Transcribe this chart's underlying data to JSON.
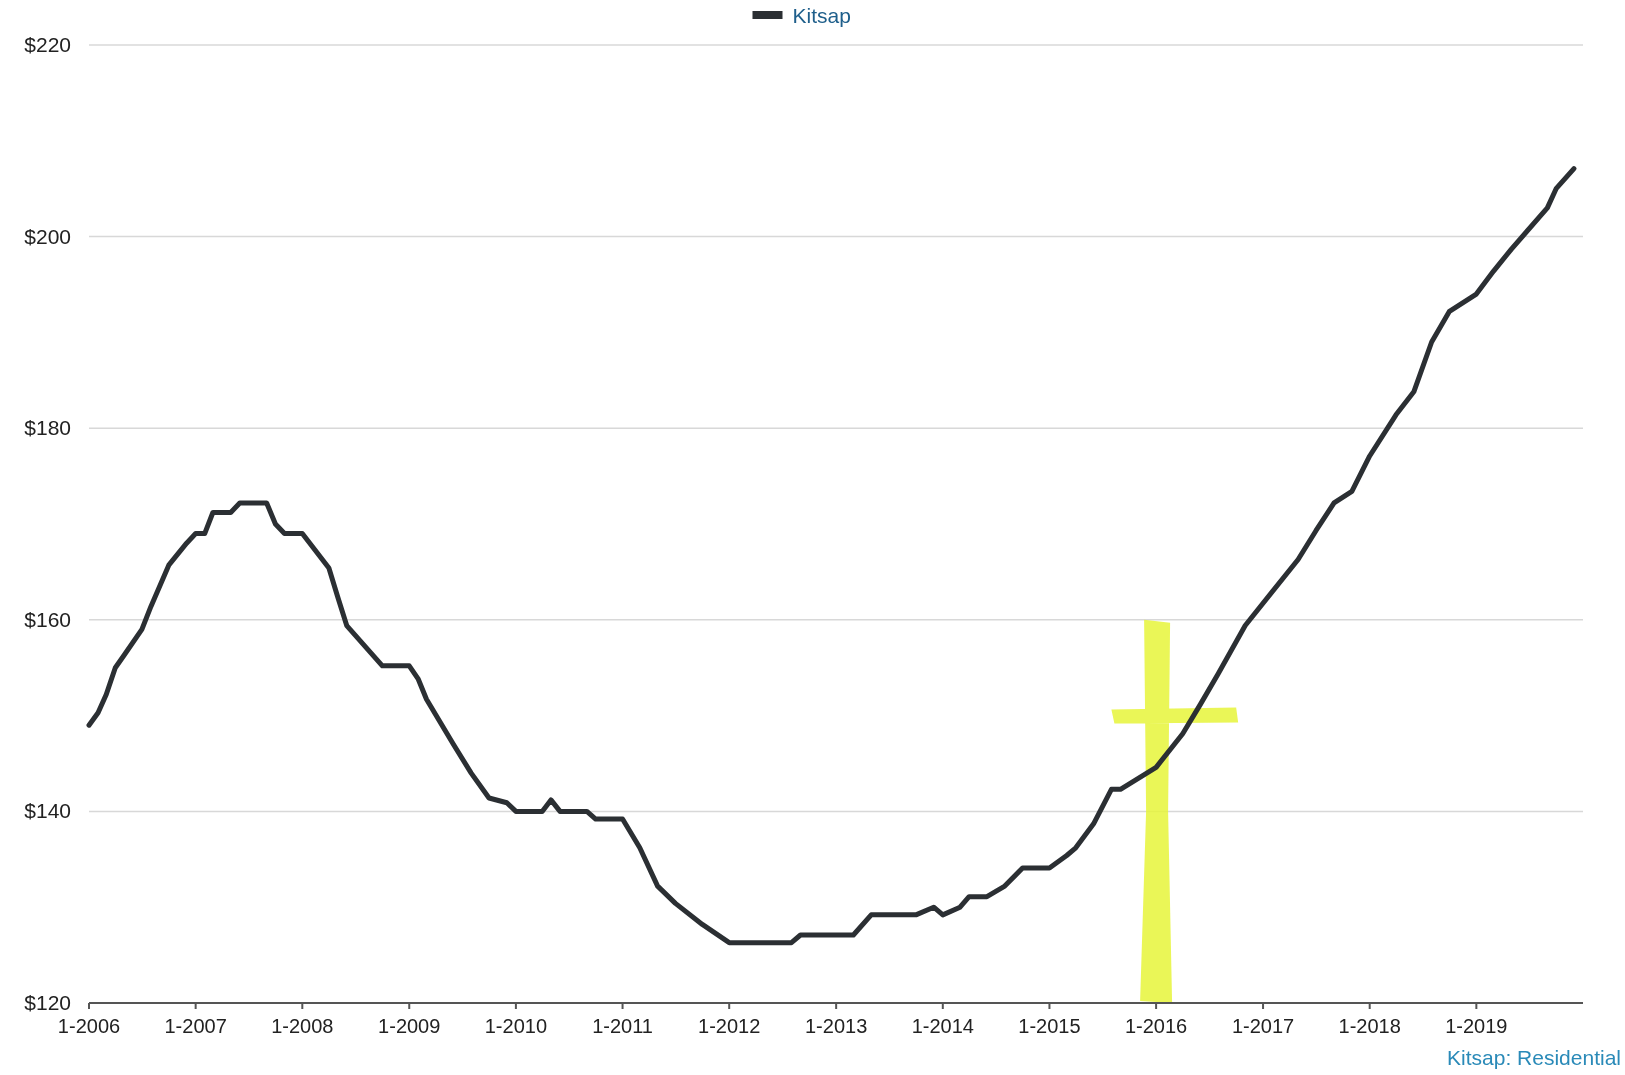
{
  "chart_data": {
    "type": "line",
    "x": [
      "2006-01",
      "2006-02",
      "2006-03",
      "2006-04",
      "2006-05",
      "2006-07",
      "2006-08",
      "2006-10",
      "2006-12",
      "2007-01",
      "2007-02",
      "2007-03",
      "2007-05",
      "2007-06",
      "2007-09",
      "2007-10",
      "2007-11",
      "2008-01",
      "2008-04",
      "2008-05",
      "2008-06",
      "2008-10",
      "2009-01",
      "2009-02",
      "2009-03",
      "2009-06",
      "2009-08",
      "2009-10",
      "2009-12",
      "2010-01",
      "2010-04",
      "2010-05",
      "2010-06",
      "2010-09",
      "2010-10",
      "2011-01",
      "2011-03",
      "2011-05",
      "2011-07",
      "2011-10",
      "2012-01",
      "2012-08",
      "2012-09",
      "2013-03",
      "2013-05",
      "2013-10",
      "2013-12",
      "2014-01",
      "2014-03",
      "2014-04",
      "2014-06",
      "2014-08",
      "2014-10",
      "2015-01",
      "2015-03",
      "2015-04",
      "2015-06",
      "2015-08",
      "2015-09",
      "2016-01",
      "2016-04",
      "2016-06",
      "2016-08",
      "2016-11",
      "2017-05",
      "2017-07",
      "2017-09",
      "2017-11",
      "2018-01",
      "2018-04",
      "2018-06",
      "2018-08",
      "2018-10",
      "2019-01",
      "2019-03",
      "2019-05",
      "2019-09",
      "2019-10",
      "2019-12"
    ],
    "series": [
      {
        "name": "Kitsap",
        "color": "#2b2f33",
        "values": [
          149,
          150.3,
          152.2,
          155,
          156.3,
          159,
          161.4,
          165.7,
          168,
          169,
          169,
          171.2,
          171.2,
          172.2,
          172.2,
          170,
          169,
          169,
          165.4,
          162.4,
          159.4,
          155.2,
          155.2,
          153.8,
          151.7,
          147,
          144,
          141.4,
          140.9,
          140,
          140,
          141.2,
          140,
          140,
          139.2,
          139.2,
          136.2,
          132.2,
          130.4,
          128.2,
          126.3,
          126.3,
          127.1,
          127.1,
          129.2,
          129.2,
          130,
          129.2,
          130,
          131.1,
          131.1,
          132.2,
          134.1,
          134.1,
          135.4,
          136.2,
          138.7,
          142.3,
          142.3,
          144.6,
          148.1,
          151.2,
          154.4,
          159.4,
          166.3,
          169.3,
          172.2,
          173.4,
          177.1,
          181.4,
          183.8,
          189,
          192.2,
          194,
          196.4,
          198.7,
          203,
          205,
          207.1
        ]
      }
    ],
    "xlim": [
      "2006-01",
      "2020-01"
    ],
    "xticks": [
      {
        "value": "2006-01",
        "label": "1-2006"
      },
      {
        "value": "2007-01",
        "label": "1-2007"
      },
      {
        "value": "2008-01",
        "label": "1-2008"
      },
      {
        "value": "2009-01",
        "label": "1-2009"
      },
      {
        "value": "2010-01",
        "label": "1-2010"
      },
      {
        "value": "2011-01",
        "label": "1-2011"
      },
      {
        "value": "2012-01",
        "label": "1-2012"
      },
      {
        "value": "2013-01",
        "label": "1-2013"
      },
      {
        "value": "2014-01",
        "label": "1-2014"
      },
      {
        "value": "2015-01",
        "label": "1-2015"
      },
      {
        "value": "2016-01",
        "label": "1-2016"
      },
      {
        "value": "2017-01",
        "label": "1-2017"
      },
      {
        "value": "2018-01",
        "label": "1-2018"
      },
      {
        "value": "2019-01",
        "label": "1-2019"
      }
    ],
    "ylim": [
      120,
      220
    ],
    "yticks": [
      {
        "value": 120,
        "label": "$120"
      },
      {
        "value": 140,
        "label": "$140"
      },
      {
        "value": 160,
        "label": "$160"
      },
      {
        "value": 180,
        "label": "$180"
      },
      {
        "value": 200,
        "label": "$200"
      },
      {
        "value": 220,
        "label": "$220"
      }
    ],
    "grid": "y",
    "legend": "top",
    "marker": "none",
    "line_style": "solid",
    "annotations": [
      "Kitsap: Residential"
    ]
  }
}
